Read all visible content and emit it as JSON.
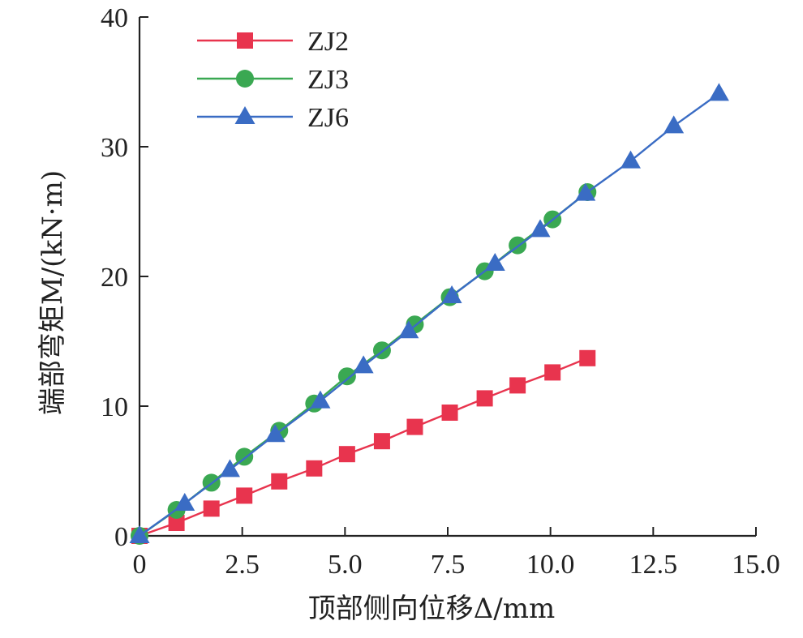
{
  "chart_data": {
    "type": "line",
    "xlabel": "顶部侧向位移Δ/mm",
    "ylabel": "端部弯矩M/(kN·m)",
    "xlim": [
      0,
      15
    ],
    "ylim": [
      0,
      40
    ],
    "xticks": [
      "0",
      "2.5",
      "5.0",
      "7.5",
      "10.0",
      "12.5",
      "15.0"
    ],
    "xtick_values": [
      0,
      2.5,
      5,
      7.5,
      10,
      12.5,
      15
    ],
    "yticks": [
      "0",
      "10",
      "20",
      "30",
      "40"
    ],
    "ytick_values": [
      0,
      10,
      20,
      30,
      40
    ],
    "grid": false,
    "legend_position": "top-left",
    "series": [
      {
        "name": "ZJ2",
        "color": "#e8344e",
        "marker": "square",
        "x": [
          0,
          0.9,
          1.75,
          2.55,
          3.4,
          4.25,
          5.05,
          5.9,
          6.7,
          7.55,
          8.4,
          9.2,
          10.05,
          10.9
        ],
        "y": [
          0,
          1.0,
          2.1,
          3.1,
          4.2,
          5.2,
          6.3,
          7.3,
          8.4,
          9.5,
          10.6,
          11.6,
          12.6,
          13.7
        ]
      },
      {
        "name": "ZJ3",
        "color": "#3aa852",
        "marker": "circle",
        "x": [
          0,
          0.9,
          1.75,
          2.55,
          3.4,
          4.25,
          5.05,
          5.9,
          6.7,
          7.55,
          8.4,
          9.2,
          10.05,
          10.9
        ],
        "y": [
          0,
          2.0,
          4.1,
          6.1,
          8.1,
          10.2,
          12.3,
          14.3,
          16.3,
          18.4,
          20.4,
          22.4,
          24.4,
          26.5
        ]
      },
      {
        "name": "ZJ6",
        "color": "#3a6cc4",
        "marker": "triangle",
        "x": [
          0,
          1.1,
          2.2,
          3.3,
          4.4,
          5.45,
          6.55,
          7.6,
          8.65,
          9.75,
          10.85,
          11.95,
          13.0,
          14.1
        ],
        "y": [
          0,
          2.5,
          5.1,
          7.8,
          10.4,
          13.1,
          15.8,
          18.5,
          21.0,
          23.6,
          26.4,
          28.9,
          31.6,
          34.1
        ]
      }
    ]
  }
}
